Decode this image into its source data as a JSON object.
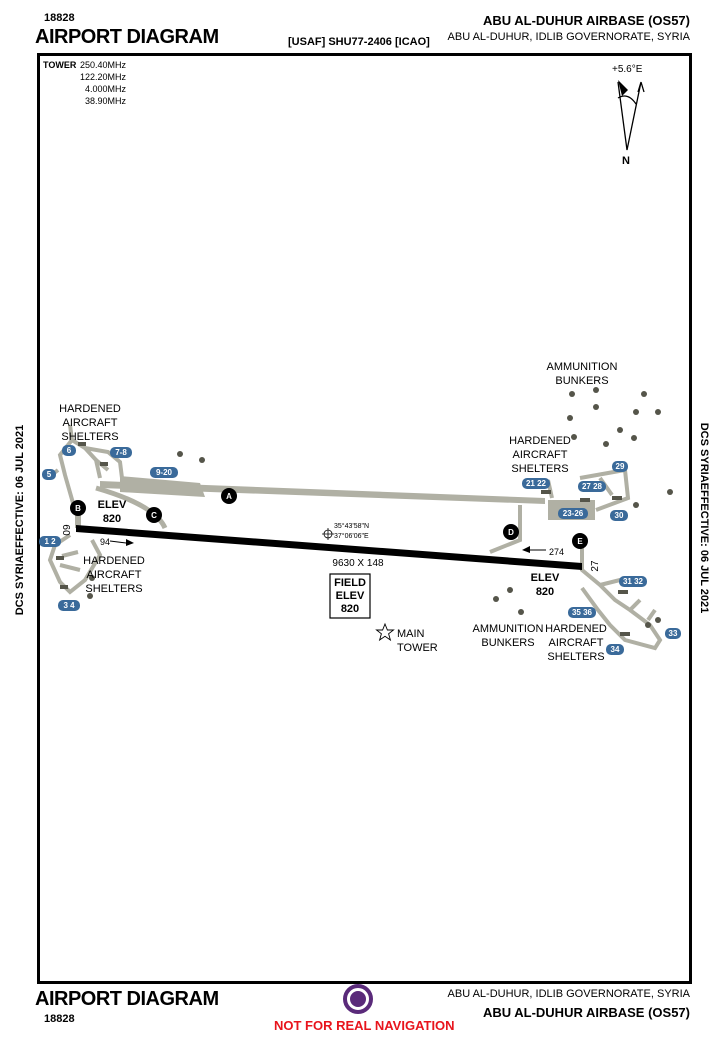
{
  "header": {
    "chart_id": "18828",
    "title": "AIRPORT DIAGRAM",
    "code": "[USAF] SHU77-2406 [ICAO]",
    "airport_name": "ABU AL-DUHUR AIRBASE (OS57)",
    "location": "ABU AL-DUHUR, IDLIB GOVERNORATE,  SYRIA"
  },
  "side_labels": {
    "left": "DCS SYRIAEFFECTIVE: 06 JUL 2021",
    "right": "DCS SYRIAEFFECTIVE: 06 JUL 2021"
  },
  "tower": {
    "label": "TOWER",
    "frequencies": [
      "250.40MHz",
      "122.20MHz",
      "4.000MHz",
      "38.90MHz"
    ]
  },
  "compass": {
    "variation": "+5.6°E",
    "north": "N"
  },
  "runway": {
    "end_west": "09",
    "end_east": "27",
    "dimensions": "9630  X 148",
    "heading_west": "94",
    "heading_east": "274",
    "coords_lat": "35°43'58\"N",
    "coords_lon": "37°06'06\"E"
  },
  "elevations": {
    "west_label": "ELEV",
    "west_value": "820",
    "east_label": "ELEV",
    "east_value": "820",
    "field_line1": "FIELD",
    "field_line2": "ELEV",
    "field_value": "820"
  },
  "taxiways": [
    "A",
    "B",
    "C",
    "D",
    "E"
  ],
  "shelter_labels": {
    "nw": [
      "HARDENED",
      "AIRCRAFT",
      "SHELTERS"
    ],
    "sw": [
      "HARDENED",
      "AIRCRAFT",
      "SHELTERS"
    ],
    "ne": [
      "HARDENED",
      "AIRCRAFT",
      "SHELTERS"
    ],
    "se": [
      "HARDENED",
      "AIRCRAFT",
      "SHELTERS"
    ]
  },
  "bunker_labels": {
    "ne": [
      "AMMUNITION",
      "BUNKERS"
    ],
    "se": [
      "AMMUNITION",
      "BUNKERS"
    ]
  },
  "main_tower": [
    "MAIN",
    "TOWER"
  ],
  "parking_spots": [
    "6",
    "7-8",
    "5",
    "9-20",
    "1 2",
    "3 4",
    "21 22",
    "27 28",
    "29",
    "23-26",
    "30",
    "31 32",
    "35 36",
    "34",
    "33"
  ],
  "footer": {
    "title": "AIRPORT DIAGRAM",
    "chart_id": "18828",
    "location": "ABU AL-DUHUR, IDLIB GOVERNORATE,  SYRIA",
    "airport_name": "ABU AL-DUHUR AIRBASE (OS57)",
    "disclaimer": "NOT FOR REAL NAVIGATION"
  },
  "colors": {
    "taxiway": "#b0b0a4",
    "runway": "#000000",
    "spot_badge": "#3a6a9a",
    "bunker": "#55554a",
    "disclaimer": "#e8141c",
    "logo": "#5a2a7a"
  }
}
